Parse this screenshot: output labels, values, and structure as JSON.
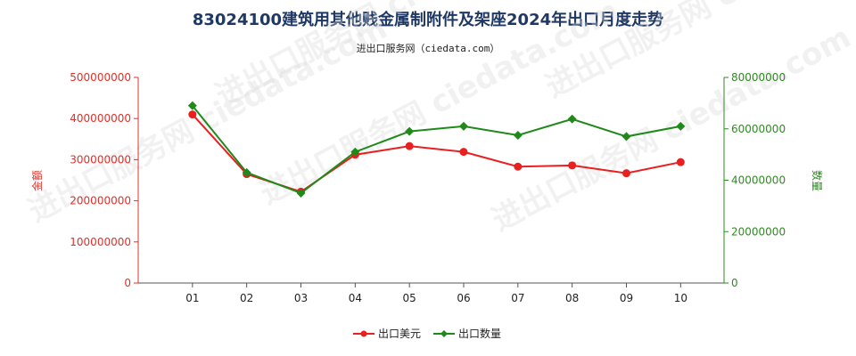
{
  "header": {
    "title": "83024100建筑用其他贱金属制附件及架座2024年出口月度走势",
    "subtitle": "进出口服务网（ciedata.com）"
  },
  "watermark": "进出口服务网 ciedata.com",
  "chart_data": {
    "type": "line",
    "categories": [
      "01",
      "02",
      "03",
      "04",
      "05",
      "06",
      "07",
      "08",
      "09",
      "10"
    ],
    "y_left": {
      "label": "金额",
      "range": [
        0,
        500000000
      ],
      "ticks": [
        "0",
        "100000000",
        "200000000",
        "300000000",
        "400000000",
        "500000000"
      ]
    },
    "y_right": {
      "label": "数量",
      "range": [
        0,
        80000000
      ],
      "ticks": [
        "0",
        "20000000",
        "40000000",
        "60000000",
        "80000000"
      ]
    },
    "series": [
      {
        "name": "出口美元",
        "axis": "left",
        "color": "#e8201f",
        "values": [
          410000000,
          265000000,
          222000000,
          312000000,
          333000000,
          319000000,
          283000000,
          286000000,
          267000000,
          294000000
        ]
      },
      {
        "name": "出口数量",
        "axis": "right",
        "color": "#1f8a1a",
        "values": [
          69000000,
          43000000,
          35000000,
          51000000,
          59000000,
          61000000,
          57500000,
          63800000,
          57000000,
          61000000
        ]
      }
    ],
    "legend": "bottom-center",
    "grid": false
  }
}
